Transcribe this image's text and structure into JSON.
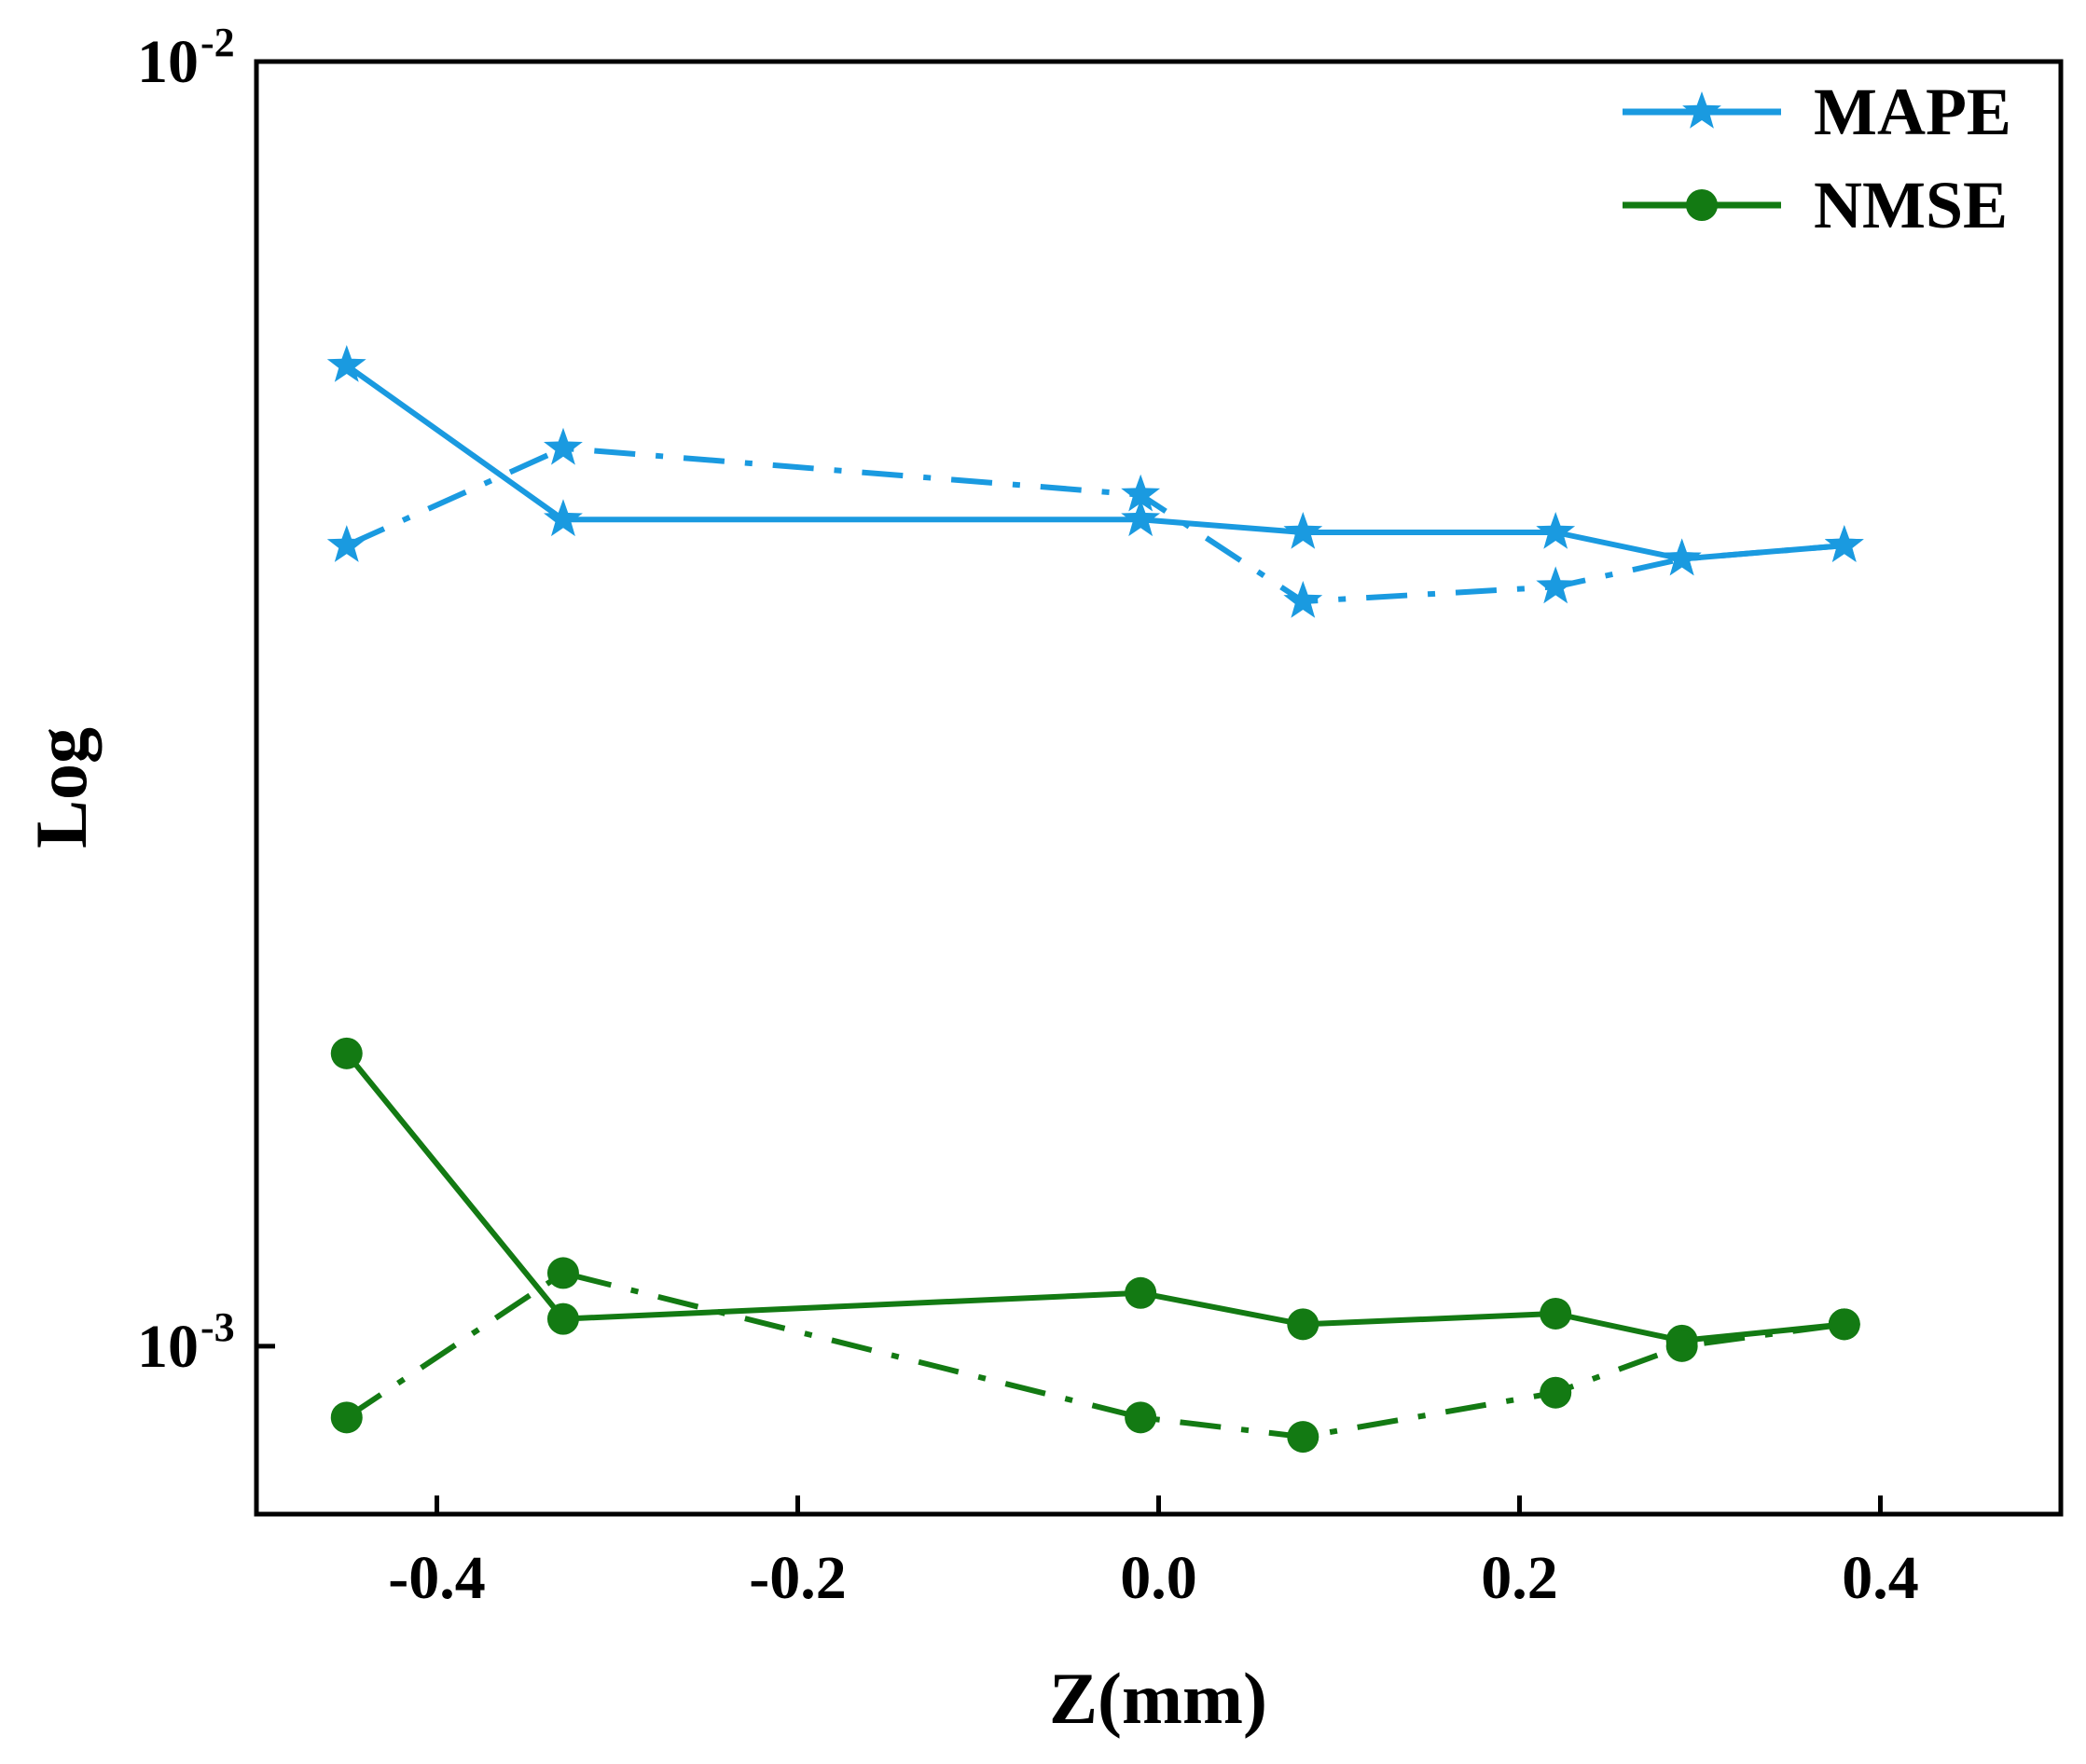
{
  "chart_data": {
    "type": "line",
    "title": "",
    "xlabel": "Z(mm)",
    "ylabel": "Log",
    "xlim": [
      -0.5,
      0.5
    ],
    "yscale": "log",
    "ylim": [
      0.00074,
      0.01
    ],
    "x_ticks": [
      "-0.4",
      "-0.2",
      "0.0",
      "0.2",
      "0.4"
    ],
    "y_ticks": [
      {
        "value": 0.01,
        "base": "10",
        "exp": "-2"
      },
      {
        "value": 0.001,
        "base": "10",
        "exp": "-3"
      }
    ],
    "legend": {
      "position": "top-right",
      "entries": [
        "MAPE",
        "NMSE"
      ]
    },
    "colors": {
      "mape": "#1a9ae0",
      "nmse": "#137a13"
    },
    "series": [
      {
        "name": "MAPE",
        "style": "solid",
        "marker": "star",
        "x": [
          -0.45,
          -0.33,
          -0.01,
          0.08,
          0.22,
          0.29,
          0.38
        ],
        "y": [
          0.0058,
          0.0044,
          0.0044,
          0.0043,
          0.0043,
          0.0041,
          0.0042
        ]
      },
      {
        "name": "MAPE",
        "style": "dashdot",
        "marker": "star",
        "x": [
          -0.45,
          -0.33,
          -0.01,
          0.08,
          0.22,
          0.29,
          0.38
        ],
        "y": [
          0.0042,
          0.005,
          0.0046,
          0.0038,
          0.0039,
          0.0041,
          0.0042
        ]
      },
      {
        "name": "NMSE",
        "style": "solid",
        "marker": "circle",
        "x": [
          -0.45,
          -0.33,
          -0.01,
          0.08,
          0.22,
          0.29,
          0.38
        ],
        "y": [
          0.00169,
          0.00105,
          0.0011,
          0.00104,
          0.00106,
          0.00101,
          0.00104
        ]
      },
      {
        "name": "NMSE",
        "style": "dashdot",
        "marker": "circle",
        "x": [
          -0.45,
          -0.33,
          -0.01,
          0.08,
          0.22,
          0.29,
          0.38
        ],
        "y": [
          0.00088,
          0.00114,
          0.00088,
          0.00085,
          0.00092,
          0.001,
          0.00104
        ]
      }
    ]
  }
}
